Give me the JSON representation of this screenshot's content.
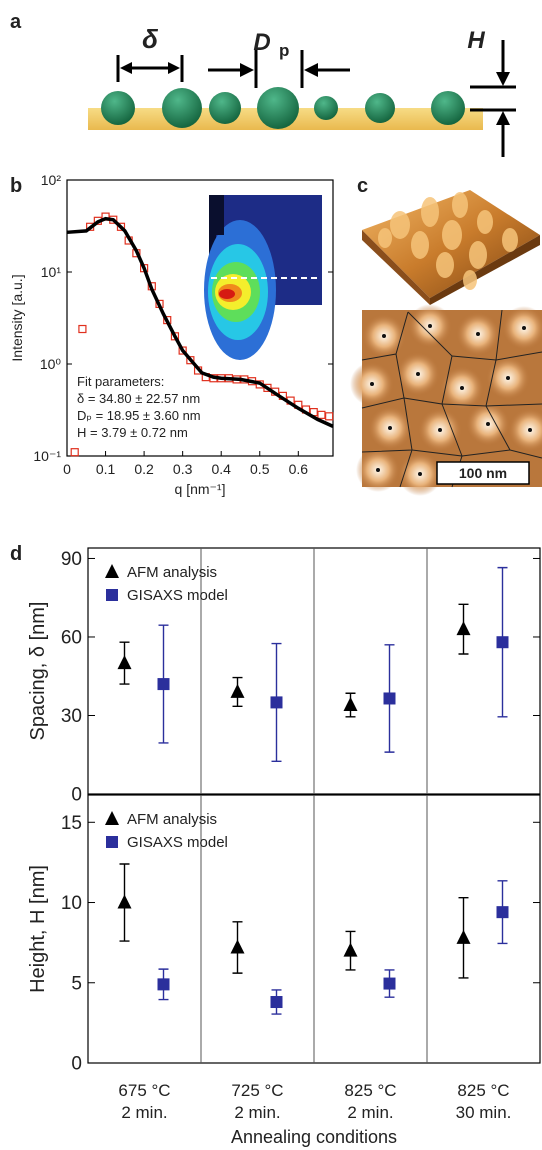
{
  "panel_labels": [
    "a",
    "b",
    "c",
    "d"
  ],
  "diagram": {
    "spacing": "δ",
    "diameter": "D",
    "diameter_sub": "p",
    "height": "H"
  },
  "image": {
    "scale_bar": "100 nm"
  },
  "chart_data": [
    {
      "type": "line",
      "log_y": true,
      "x_label": "q [nm⁻¹]",
      "y_label": "Intensity [a.u.]",
      "xlim": [
        0,
        0.69
      ],
      "xticks": [
        0,
        0.1,
        0.2,
        0.3,
        0.4,
        0.5,
        0.6
      ],
      "ylim": [
        0.1,
        100
      ],
      "yticks": [
        {
          "value": 0.1,
          "label": "10⁻¹"
        },
        {
          "value": 1,
          "label": "10⁰"
        },
        {
          "value": 10,
          "label": "10¹"
        },
        {
          "value": 100,
          "label": "10²"
        }
      ],
      "annotations": [
        "Fit parameters:",
        "δ = 34.80 ± 22.57 nm",
        "Dₚ = 18.95 ± 3.60 nm",
        "H = 3.79 ± 0.72 nm"
      ],
      "series": [
        {
          "color": "#e0301e",
          "marker": "square",
          "x": [
            0.02,
            0.04,
            0.06,
            0.08,
            0.1,
            0.12,
            0.14,
            0.16,
            0.18,
            0.2,
            0.22,
            0.24,
            0.26,
            0.28,
            0.3,
            0.32,
            0.34,
            0.36,
            0.38,
            0.4,
            0.42,
            0.44,
            0.46,
            0.48,
            0.5,
            0.52,
            0.54,
            0.56,
            0.58,
            0.6,
            0.62,
            0.64,
            0.66,
            0.68
          ],
          "values": [
            0.11,
            2.4,
            31,
            36,
            40,
            37,
            31,
            22,
            16,
            11,
            7,
            4.5,
            3.0,
            2.0,
            1.4,
            1.1,
            0.85,
            0.72,
            0.7,
            0.7,
            0.7,
            0.68,
            0.68,
            0.65,
            0.6,
            0.55,
            0.5,
            0.45,
            0.4,
            0.36,
            0.32,
            0.3,
            0.28,
            0.27
          ]
        },
        {
          "color": "#000000",
          "marker": "none",
          "x": [
            0,
            0.05,
            0.08,
            0.1,
            0.12,
            0.15,
            0.18,
            0.2,
            0.22,
            0.25,
            0.28,
            0.3,
            0.33,
            0.35,
            0.38,
            0.4,
            0.45,
            0.5,
            0.55,
            0.6,
            0.65,
            0.69
          ],
          "values": [
            27,
            28,
            35,
            38,
            37,
            28,
            17,
            11,
            6.5,
            3.5,
            2.0,
            1.4,
            1.0,
            0.8,
            0.72,
            0.7,
            0.68,
            0.62,
            0.45,
            0.33,
            0.25,
            0.21
          ]
        }
      ]
    },
    {
      "type": "errorbar",
      "y_label": "Spacing, δ [nm]",
      "ylim": [
        0,
        94
      ],
      "yticks": [
        0,
        30,
        60,
        90
      ],
      "series": [
        {
          "name": "AFM analysis",
          "color": "#000000",
          "marker": "triangle",
          "values": [
            50,
            39,
            34,
            63
          ],
          "errors": [
            8,
            5.5,
            4.5,
            9.5
          ]
        },
        {
          "name": "GISAXS model",
          "color": "#2b2f9c",
          "marker": "square",
          "values": [
            42,
            35,
            36.5,
            58
          ],
          "errors": [
            22.5,
            22.5,
            20.5,
            28.5
          ]
        }
      ]
    },
    {
      "type": "errorbar",
      "y_label": "Height, H [nm]",
      "x_label": "Annealing conditions",
      "categories": [
        [
          "675 °C",
          "2 min."
        ],
        [
          "725 °C",
          "2 min."
        ],
        [
          "825 °C",
          "2 min."
        ],
        [
          "825 °C",
          "30 min."
        ]
      ],
      "ylim": [
        0,
        16.7
      ],
      "yticks": [
        0,
        5,
        10,
        15
      ],
      "series": [
        {
          "name": "AFM analysis",
          "color": "#000000",
          "marker": "triangle",
          "values": [
            10,
            7.2,
            7.0,
            7.8
          ],
          "errors": [
            2.4,
            1.6,
            1.2,
            2.5
          ]
        },
        {
          "name": "GISAXS model",
          "color": "#2b2f9c",
          "marker": "square",
          "values": [
            4.9,
            3.8,
            4.95,
            9.4
          ],
          "errors": [
            0.95,
            0.75,
            0.85,
            1.95
          ]
        }
      ]
    }
  ]
}
